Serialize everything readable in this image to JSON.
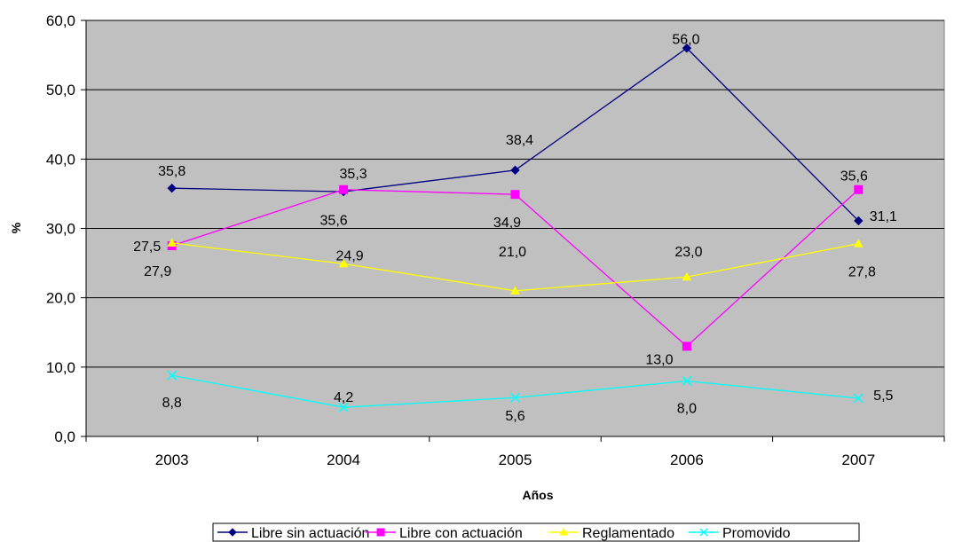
{
  "chart_data": {
    "type": "line",
    "title": "",
    "xlabel": "Años",
    "ylabel": "%",
    "categories": [
      "2003",
      "2004",
      "2005",
      "2006",
      "2007"
    ],
    "ylim": [
      0,
      60
    ],
    "ytick_values": [
      0,
      10,
      20,
      30,
      40,
      50,
      60
    ],
    "ytick_labels": [
      "0,0",
      "10,0",
      "20,0",
      "30,0",
      "40,0",
      "50,0",
      "60,0"
    ],
    "grid": "horizontal",
    "legend_position": "bottom",
    "plot_background": "#c0c0c0",
    "series": [
      {
        "name": "Libre sin actuación",
        "color": "#000080",
        "marker": "diamond",
        "values": [
          35.8,
          35.3,
          38.4,
          56.0,
          31.1
        ],
        "labels": [
          "35,8",
          "35,3",
          "38,4",
          "56,0",
          "31,1"
        ]
      },
      {
        "name": "Libre con actuación",
        "color": "#ff00ff",
        "marker": "square",
        "values": [
          27.5,
          35.6,
          34.9,
          13.0,
          35.6
        ],
        "labels": [
          "27,5",
          "35,6",
          "34,9",
          "13,0",
          "35,6"
        ]
      },
      {
        "name": "Reglamentado",
        "color": "#ffff00",
        "marker": "triangle",
        "values": [
          27.9,
          24.9,
          21.0,
          23.0,
          27.8
        ],
        "labels": [
          "27,9",
          "24,9",
          "21,0",
          "23,0",
          "27,8"
        ]
      },
      {
        "name": "Promovido",
        "color": "#00ffff",
        "marker": "x",
        "values": [
          8.8,
          4.2,
          5.6,
          8.0,
          5.5
        ],
        "labels": [
          "8,8",
          "4,2",
          "5,6",
          "8,0",
          "5,5"
        ]
      }
    ]
  }
}
